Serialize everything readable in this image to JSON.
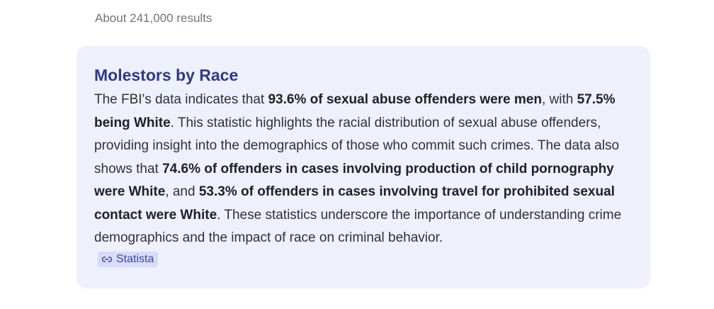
{
  "results_count": "About 241,000 results",
  "card": {
    "title": "Molestors by Race",
    "paragraph": [
      {
        "text": "The FBI's data indicates that ",
        "bold": false
      },
      {
        "text": "93.6% of sexual abuse offenders were men",
        "bold": true
      },
      {
        "text": ", with ",
        "bold": false
      },
      {
        "text": "57.5% being White",
        "bold": true
      },
      {
        "text": ". This statistic highlights the racial distribution of sexual abuse offenders, providing insight into the demographics of those who commit such crimes. The data also shows that ",
        "bold": false
      },
      {
        "text": "74.6% of offenders in cases involving production of child pornography were White",
        "bold": true
      },
      {
        "text": ", and ",
        "bold": false
      },
      {
        "text": "53.3% of offenders in cases involving travel for prohibited sexual contact were White",
        "bold": true
      },
      {
        "text": ". These statistics underscore the importance of understanding crime demographics and the impact of race on criminal behavior.",
        "bold": false
      }
    ],
    "source": "Statista"
  }
}
